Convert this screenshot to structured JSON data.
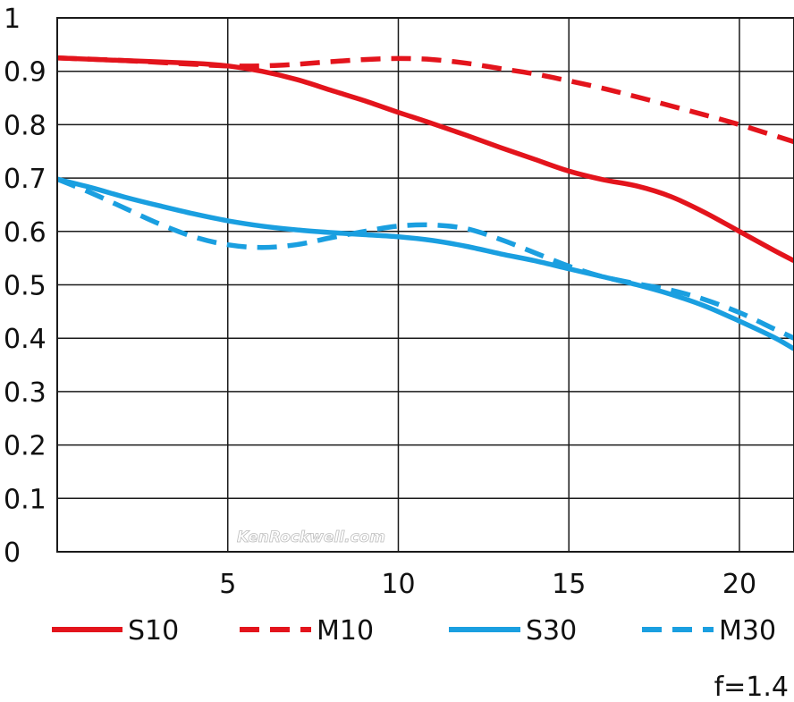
{
  "chart_data": {
    "type": "line",
    "title": "",
    "xlabel": "",
    "ylabel": "",
    "xlim": [
      0,
      21.6
    ],
    "ylim": [
      0,
      1
    ],
    "xticks": [
      "5",
      "10",
      "15",
      "20"
    ],
    "xtick_values": [
      5,
      10,
      15,
      20
    ],
    "yticks": [
      "0",
      "0.1",
      "0.2",
      "0.3",
      "0.4",
      "0.5",
      "0.6",
      "0.7",
      "0.8",
      "0.9",
      "1"
    ],
    "ytick_values": [
      0,
      0.1,
      0.2,
      0.3,
      0.4,
      0.5,
      0.6,
      0.7,
      0.8,
      0.9,
      1
    ],
    "grid": true,
    "legend_position": "bottom",
    "series": [
      {
        "name": "S10",
        "color": "#e3141c",
        "style": "solid",
        "x": [
          0,
          2,
          4,
          5,
          6,
          7,
          8,
          9,
          10,
          11,
          12,
          13,
          14,
          15,
          16,
          17,
          18,
          19,
          20,
          21,
          21.6
        ],
        "y": [
          0.925,
          0.92,
          0.915,
          0.91,
          0.9,
          0.885,
          0.865,
          0.845,
          0.823,
          0.802,
          0.78,
          0.757,
          0.735,
          0.713,
          0.697,
          0.685,
          0.665,
          0.635,
          0.6,
          0.565,
          0.545
        ]
      },
      {
        "name": "M10",
        "color": "#e3141c",
        "style": "dashed",
        "x": [
          0,
          2,
          4,
          5,
          6,
          7,
          8,
          9,
          10,
          11,
          12,
          13,
          14,
          15,
          16,
          17,
          18,
          19,
          20,
          21,
          21.6
        ],
        "y": [
          0.925,
          0.92,
          0.913,
          0.91,
          0.91,
          0.913,
          0.918,
          0.922,
          0.924,
          0.922,
          0.915,
          0.905,
          0.895,
          0.882,
          0.868,
          0.852,
          0.835,
          0.818,
          0.8,
          0.78,
          0.768
        ]
      },
      {
        "name": "S30",
        "color": "#1a9fe0",
        "style": "solid",
        "x": [
          0,
          1,
          2,
          3,
          4,
          5,
          6,
          7,
          8,
          9,
          10,
          11,
          12,
          13,
          14,
          15,
          16,
          17,
          18,
          19,
          20,
          21,
          21.6
        ],
        "y": [
          0.698,
          0.682,
          0.664,
          0.648,
          0.633,
          0.62,
          0.61,
          0.603,
          0.598,
          0.594,
          0.59,
          0.583,
          0.572,
          0.558,
          0.545,
          0.53,
          0.515,
          0.5,
          0.482,
          0.46,
          0.432,
          0.402,
          0.38
        ]
      },
      {
        "name": "M30",
        "color": "#1a9fe0",
        "style": "dashed",
        "x": [
          0,
          1,
          2,
          3,
          4,
          5,
          6,
          7,
          8,
          9,
          10,
          11,
          12,
          13,
          14,
          15,
          16,
          17,
          18,
          19,
          20,
          21,
          21.6
        ],
        "y": [
          0.698,
          0.672,
          0.643,
          0.614,
          0.59,
          0.575,
          0.57,
          0.575,
          0.588,
          0.6,
          0.61,
          0.612,
          0.605,
          0.585,
          0.56,
          0.535,
          0.515,
          0.502,
          0.49,
          0.472,
          0.448,
          0.418,
          0.4
        ]
      }
    ]
  },
  "watermark": "KenRockwell.com",
  "note": "f=1.4"
}
